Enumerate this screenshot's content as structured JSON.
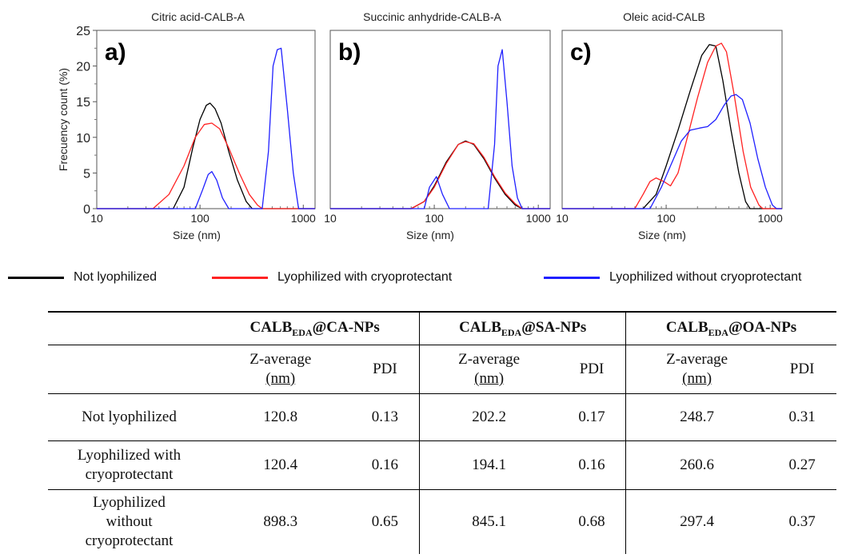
{
  "legend": [
    {
      "label": "Not lyophilized",
      "color": "#000000"
    },
    {
      "label": "Lyophilized with cryoprotectant",
      "color": "#ff2222"
    },
    {
      "label": "Lyophilized without cryoprotectant",
      "color": "#2020ff"
    }
  ],
  "chart_data": [
    {
      "type": "line",
      "title": "Citric acid-CALB-A",
      "panel_label": "a)",
      "xlabel": "Size (nm)",
      "ylabel": "Frecuency count (%)",
      "xscale": "log",
      "xlim": [
        10,
        1300
      ],
      "ylim": [
        0,
        25
      ],
      "xticks": [
        "10",
        "100",
        "1000"
      ],
      "yticks": [
        "0",
        "5",
        "10",
        "15",
        "20",
        "25"
      ],
      "series": [
        {
          "name": "Not lyophilized",
          "color": "#000000",
          "points": [
            [
              10,
              0
            ],
            [
              55,
              0
            ],
            [
              70,
              3
            ],
            [
              85,
              8.5
            ],
            [
              100,
              12.5
            ],
            [
              115,
              14.5
            ],
            [
              125,
              14.8
            ],
            [
              140,
              14
            ],
            [
              160,
              12
            ],
            [
              190,
              8
            ],
            [
              230,
              4
            ],
            [
              280,
              1
            ],
            [
              320,
              0
            ],
            [
              1300,
              0
            ]
          ]
        },
        {
          "name": "Lyophilized with cryoprotectant",
          "color": "#ff2222",
          "points": [
            [
              10,
              0
            ],
            [
              35,
              0
            ],
            [
              50,
              2
            ],
            [
              70,
              6
            ],
            [
              90,
              10
            ],
            [
              110,
              11.8
            ],
            [
              130,
              12
            ],
            [
              155,
              11.2
            ],
            [
              190,
              8.5
            ],
            [
              240,
              5
            ],
            [
              300,
              2
            ],
            [
              360,
              0.5
            ],
            [
              400,
              0
            ],
            [
              1300,
              0
            ]
          ]
        },
        {
          "name": "Lyophilized without cryoprotectant",
          "color": "#2020ff",
          "points": [
            [
              10,
              0
            ],
            [
              90,
              0
            ],
            [
              105,
              2.5
            ],
            [
              120,
              4.8
            ],
            [
              130,
              5.2
            ],
            [
              145,
              4
            ],
            [
              165,
              1.5
            ],
            [
              190,
              0
            ],
            [
              400,
              0
            ],
            [
              460,
              8
            ],
            [
              510,
              20
            ],
            [
              560,
              22.3
            ],
            [
              610,
              22.5
            ],
            [
              700,
              14
            ],
            [
              800,
              5
            ],
            [
              900,
              0
            ],
            [
              1300,
              0
            ]
          ]
        }
      ]
    },
    {
      "type": "line",
      "title": "Succinic anhydride-CALB-A",
      "panel_label": "b)",
      "xlabel": "Size (nm)",
      "ylabel": "",
      "xscale": "log",
      "xlim": [
        10,
        1300
      ],
      "ylim": [
        0,
        25
      ],
      "xticks": [
        "10",
        "100",
        "1000"
      ],
      "yticks": [],
      "series": [
        {
          "name": "Not lyophilized",
          "color": "#000000",
          "points": [
            [
              10,
              0
            ],
            [
              60,
              0
            ],
            [
              80,
              1
            ],
            [
              100,
              3.2
            ],
            [
              130,
              6.5
            ],
            [
              170,
              9
            ],
            [
              200,
              9.5
            ],
            [
              240,
              9
            ],
            [
              300,
              7
            ],
            [
              380,
              4.3
            ],
            [
              480,
              2
            ],
            [
              600,
              0.5
            ],
            [
              700,
              0
            ],
            [
              1300,
              0
            ]
          ]
        },
        {
          "name": "Lyophilized with cryoprotectant",
          "color": "#ff2222",
          "points": [
            [
              10,
              0
            ],
            [
              60,
              0
            ],
            [
              80,
              1
            ],
            [
              100,
              3
            ],
            [
              130,
              6.3
            ],
            [
              170,
              9
            ],
            [
              200,
              9.4
            ],
            [
              240,
              9.1
            ],
            [
              300,
              7.2
            ],
            [
              380,
              4.5
            ],
            [
              480,
              2.2
            ],
            [
              600,
              0.7
            ],
            [
              700,
              0
            ],
            [
              1300,
              0
            ]
          ]
        },
        {
          "name": "Lyophilized without cryoprotectant",
          "color": "#2020ff",
          "points": [
            [
              10,
              0
            ],
            [
              80,
              0
            ],
            [
              90,
              3
            ],
            [
              105,
              4.5
            ],
            [
              120,
              2
            ],
            [
              140,
              0
            ],
            [
              330,
              0
            ],
            [
              380,
              9
            ],
            [
              410,
              20
            ],
            [
              450,
              22.3
            ],
            [
              500,
              15
            ],
            [
              560,
              6
            ],
            [
              630,
              1.5
            ],
            [
              700,
              0
            ],
            [
              1300,
              0
            ]
          ]
        }
      ]
    },
    {
      "type": "line",
      "title": "Oleic acid-CALB",
      "panel_label": "c)",
      "xlabel": "Size (nm)",
      "ylabel": "",
      "xscale": "log",
      "xlim": [
        10,
        1300
      ],
      "ylim": [
        0,
        25
      ],
      "xticks": [
        "10",
        "100",
        "1000"
      ],
      "yticks": [],
      "series": [
        {
          "name": "Not lyophilized",
          "color": "#000000",
          "points": [
            [
              10,
              0
            ],
            [
              60,
              0
            ],
            [
              80,
              2
            ],
            [
              100,
              6
            ],
            [
              130,
              11
            ],
            [
              170,
              16.5
            ],
            [
              220,
              21.5
            ],
            [
              260,
              23
            ],
            [
              300,
              22.8
            ],
            [
              350,
              18
            ],
            [
              420,
              11
            ],
            [
              500,
              5
            ],
            [
              580,
              1
            ],
            [
              640,
              0
            ],
            [
              1300,
              0
            ]
          ]
        },
        {
          "name": "Lyophilized with cryoprotectant",
          "color": "#ff2222",
          "points": [
            [
              10,
              0
            ],
            [
              50,
              0
            ],
            [
              60,
              2
            ],
            [
              70,
              3.8
            ],
            [
              80,
              4.3
            ],
            [
              95,
              3.8
            ],
            [
              110,
              3.2
            ],
            [
              130,
              5
            ],
            [
              160,
              10
            ],
            [
              200,
              15.5
            ],
            [
              250,
              20.5
            ],
            [
              300,
              22.8
            ],
            [
              340,
              23.2
            ],
            [
              380,
              22
            ],
            [
              450,
              16
            ],
            [
              550,
              8
            ],
            [
              650,
              3
            ],
            [
              780,
              0.5
            ],
            [
              850,
              0
            ],
            [
              1300,
              0
            ]
          ]
        },
        {
          "name": "Lyophilized without cryoprotectant",
          "color": "#2020ff",
          "points": [
            [
              10,
              0
            ],
            [
              70,
              0
            ],
            [
              90,
              3
            ],
            [
              110,
              6
            ],
            [
              140,
              9.5
            ],
            [
              170,
              11
            ],
            [
              210,
              11.3
            ],
            [
              250,
              11.5
            ],
            [
              300,
              12.5
            ],
            [
              360,
              14.5
            ],
            [
              420,
              15.8
            ],
            [
              470,
              16
            ],
            [
              540,
              15.3
            ],
            [
              640,
              12
            ],
            [
              760,
              7
            ],
            [
              900,
              3
            ],
            [
              1050,
              0.5
            ],
            [
              1150,
              0
            ],
            [
              1300,
              0
            ]
          ]
        }
      ]
    }
  ],
  "table": {
    "group_headers": [
      {
        "base": "CALB",
        "sub": "EDA",
        "rest": "@CA-NPs"
      },
      {
        "base": "CALB",
        "sub": "EDA",
        "rest": "@SA-NPs"
      },
      {
        "base": "CALB",
        "sub": "EDA",
        "rest": "@OA-NPs"
      }
    ],
    "sub_headers": {
      "z_line1": "Z-average",
      "z_line2": "(nm)",
      "pdi": "PDI"
    },
    "rows": [
      {
        "label_lines": [
          "Not lyophilized"
        ],
        "values": [
          "120.8",
          "0.13",
          "202.2",
          "0.17",
          "248.7",
          "0.31"
        ]
      },
      {
        "label_lines": [
          "Lyophilized with",
          "cryoprotectant"
        ],
        "values": [
          "120.4",
          "0.16",
          "194.1",
          "0.16",
          "260.6",
          "0.27"
        ]
      },
      {
        "label_lines": [
          "Lyophilized",
          "without",
          "cryoprotectant"
        ],
        "values": [
          "898.3",
          "0.65",
          "845.1",
          "0.68",
          "297.4",
          "0.37"
        ]
      }
    ]
  }
}
